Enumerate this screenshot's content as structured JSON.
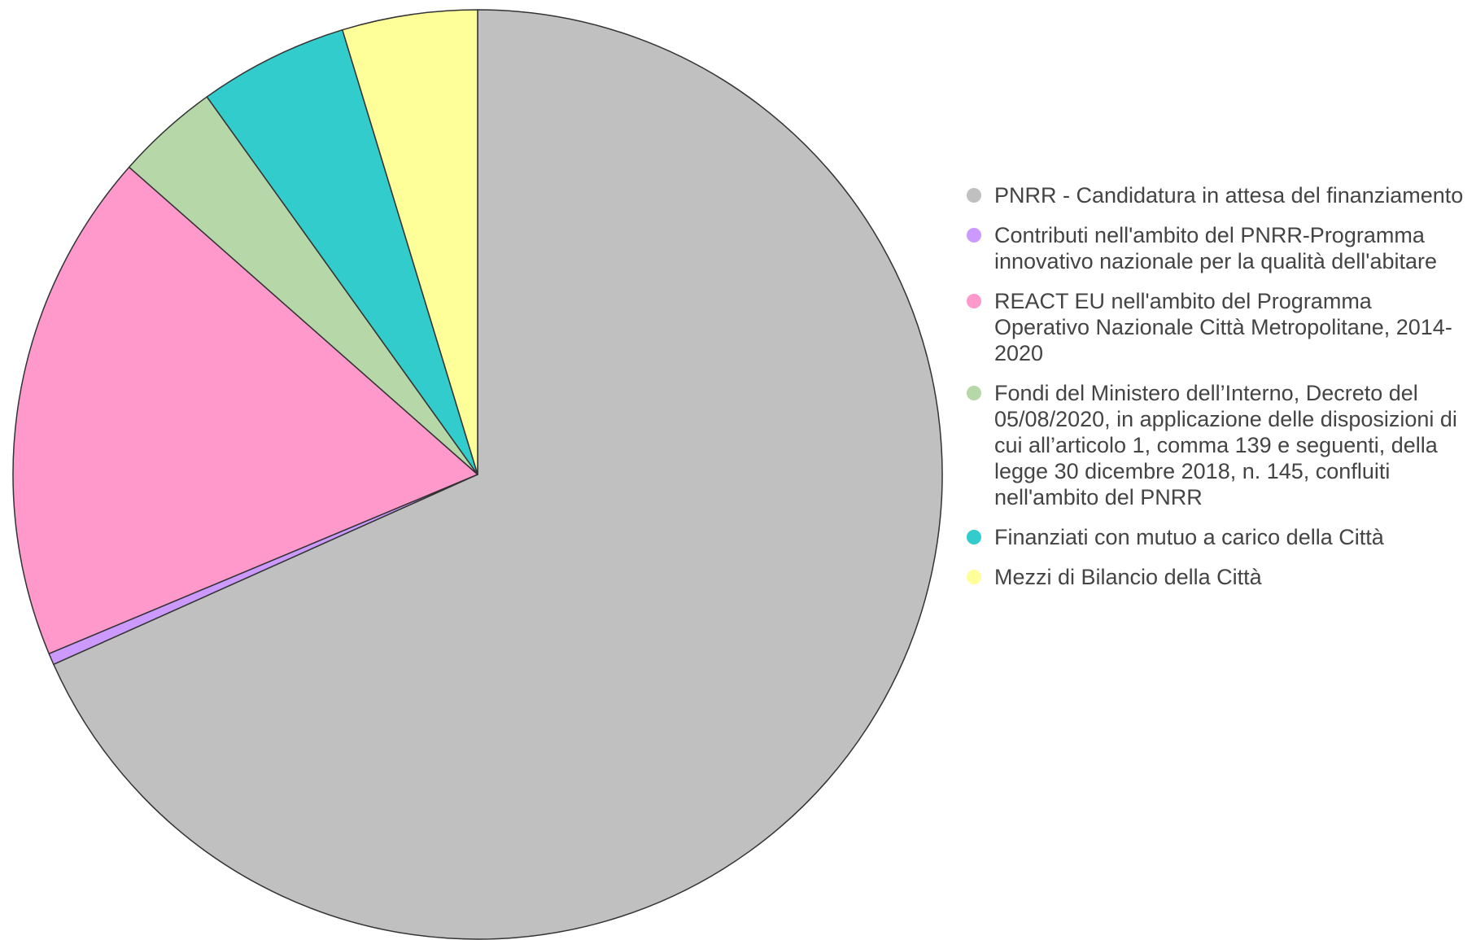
{
  "chart_data": {
    "type": "pie",
    "categories": [
      "PNRR - Candidatura in attesa del finanziamento",
      "Contributi nell'ambito del PNRR-Programma innovativo nazionale per la qualità dell'abitare",
      "REACT EU nell'ambito del Programma Operativo Nazionale Città Metropolitane, 2014-2020",
      "Fondi del Ministero dell’Interno, Decreto del 05/08/2020, in applicazione delle disposizioni di cui all’articolo 1, comma 139 e seguenti, della legge 30 dicembre 2018, n. 145, confluiti nell'ambito del PNRR",
      "Finanziati con mutuo a carico della Città",
      "Mezzi di Bilancio della Città"
    ],
    "values": [
      68.3,
      0.4,
      17.8,
      3.6,
      5.2,
      4.7
    ],
    "colors": [
      "#c0c0c0",
      "#cc99ff",
      "#ff99cc",
      "#b6d7a8",
      "#33cccc",
      "#ffff99"
    ],
    "legend": "right"
  }
}
